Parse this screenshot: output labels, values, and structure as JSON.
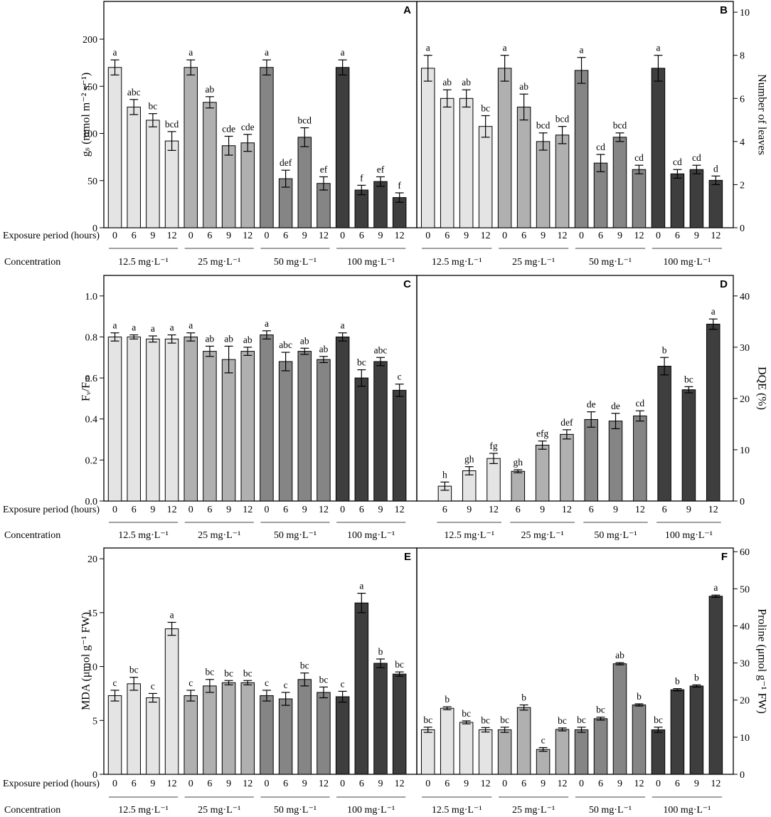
{
  "figure": {
    "row_labels": {
      "exposure": "Exposure period (hours)",
      "concentration": "Concentration"
    },
    "colors": [
      "#e4e4e4",
      "#b0b0b0",
      "#858585",
      "#3e3e3e"
    ]
  },
  "chart_data": [
    {
      "panel": "A",
      "type": "bar",
      "yaxis_side": "left",
      "ylabel": "gₛ (mmol m⁻² s⁻¹)",
      "ylim": [
        0,
        240
      ],
      "yticks": [
        0,
        50,
        100,
        150,
        200
      ],
      "groups": [
        {
          "label": "12.5 mg·L⁻¹",
          "x": [
            "0",
            "6",
            "9",
            "12"
          ],
          "values": [
            170,
            128,
            114,
            92
          ],
          "errors": [
            8,
            8,
            7,
            10
          ],
          "letters": [
            "a",
            "abc",
            "bc",
            "bcd"
          ]
        },
        {
          "label": "25 mg·L⁻¹",
          "x": [
            "0",
            "6",
            "9",
            "12"
          ],
          "values": [
            170,
            133,
            87,
            90
          ],
          "errors": [
            8,
            6,
            10,
            9
          ],
          "letters": [
            "a",
            "ab",
            "cde",
            "cde"
          ]
        },
        {
          "label": "50 mg·L⁻¹",
          "x": [
            "0",
            "6",
            "9",
            "12"
          ],
          "values": [
            170,
            52,
            96,
            47
          ],
          "errors": [
            8,
            9,
            10,
            7
          ],
          "letters": [
            "a",
            "def",
            "bcd",
            "ef"
          ]
        },
        {
          "label": "100 mg·L⁻¹",
          "x": [
            "0",
            "6",
            "9",
            "12"
          ],
          "values": [
            170,
            40,
            49,
            32
          ],
          "errors": [
            8,
            5,
            5,
            5
          ],
          "letters": [
            "a",
            "f",
            "ef",
            "f"
          ]
        }
      ]
    },
    {
      "panel": "B",
      "type": "bar",
      "yaxis_side": "right",
      "ylabel": "Number of leaves",
      "ylim": [
        0,
        10.5
      ],
      "yticks": [
        0,
        2,
        4,
        6,
        8,
        10
      ],
      "groups": [
        {
          "label": "12.5 mg·L⁻¹",
          "x": [
            "0",
            "6",
            "9",
            "12"
          ],
          "values": [
            7.4,
            6.0,
            6.0,
            4.7
          ],
          "errors": [
            0.6,
            0.4,
            0.4,
            0.5
          ],
          "letters": [
            "a",
            "ab",
            "ab",
            "bc"
          ]
        },
        {
          "label": "25 mg·L⁻¹",
          "x": [
            "0",
            "6",
            "9",
            "12"
          ],
          "values": [
            7.4,
            5.6,
            4.0,
            4.3
          ],
          "errors": [
            0.6,
            0.6,
            0.4,
            0.4
          ],
          "letters": [
            "a",
            "ab",
            "bcd",
            "bcd"
          ]
        },
        {
          "label": "50 mg·L⁻¹",
          "x": [
            "0",
            "6",
            "9",
            "12"
          ],
          "values": [
            7.3,
            3.0,
            4.2,
            2.7
          ],
          "errors": [
            0.6,
            0.4,
            0.2,
            0.2
          ],
          "letters": [
            "a",
            "cd",
            "bcd",
            "cd"
          ]
        },
        {
          "label": "100 mg·L⁻¹",
          "x": [
            "0",
            "6",
            "9",
            "12"
          ],
          "values": [
            7.4,
            2.5,
            2.7,
            2.2
          ],
          "errors": [
            0.6,
            0.2,
            0.2,
            0.2
          ],
          "letters": [
            "a",
            "cd",
            "cd",
            "d"
          ]
        }
      ]
    },
    {
      "panel": "C",
      "type": "bar",
      "yaxis_side": "left",
      "ylabel": "Fᵥ/Fₘ",
      "ylim": [
        0,
        1.1
      ],
      "yticks": [
        "0.0",
        "0.2",
        "0.4",
        "0.6",
        "0.8",
        "1.0"
      ],
      "groups": [
        {
          "label": "12.5 mg·L⁻¹",
          "x": [
            "0",
            "6",
            "9",
            "12"
          ],
          "values": [
            0.8,
            0.8,
            0.79,
            0.79
          ],
          "errors": [
            0.02,
            0.01,
            0.015,
            0.02
          ],
          "letters": [
            "a",
            "a",
            "a",
            "a"
          ]
        },
        {
          "label": "25 mg·L⁻¹",
          "x": [
            "0",
            "6",
            "9",
            "12"
          ],
          "values": [
            0.8,
            0.73,
            0.69,
            0.73
          ],
          "errors": [
            0.02,
            0.025,
            0.065,
            0.02
          ],
          "letters": [
            "a",
            "ab",
            "ab",
            "ab"
          ]
        },
        {
          "label": "50 mg·L⁻¹",
          "x": [
            "0",
            "6",
            "9",
            "12"
          ],
          "values": [
            0.81,
            0.68,
            0.73,
            0.69
          ],
          "errors": [
            0.02,
            0.045,
            0.015,
            0.015
          ],
          "letters": [
            "a",
            "abc",
            "ab",
            "ab"
          ]
        },
        {
          "label": "100 mg·L⁻¹",
          "x": [
            "0",
            "6",
            "9",
            "12"
          ],
          "values": [
            0.8,
            0.6,
            0.68,
            0.54
          ],
          "errors": [
            0.02,
            0.04,
            0.02,
            0.03
          ],
          "letters": [
            "a",
            "bc",
            "abc",
            "c"
          ]
        }
      ]
    },
    {
      "panel": "D",
      "type": "bar",
      "yaxis_side": "right",
      "ylabel": "DQE (%)",
      "ylim": [
        0,
        44
      ],
      "yticks": [
        0,
        10,
        20,
        30,
        40
      ],
      "groups": [
        {
          "label": "12.5 mg·L⁻¹",
          "x": [
            "6",
            "9",
            "12"
          ],
          "values": [
            2.9,
            5.9,
            8.3
          ],
          "errors": [
            0.8,
            0.8,
            1.0
          ],
          "letters": [
            "h",
            "gh",
            "fg"
          ]
        },
        {
          "label": "25 mg·L⁻¹",
          "x": [
            "6",
            "9",
            "12"
          ],
          "values": [
            5.8,
            10.9,
            13.0
          ],
          "errors": [
            0.3,
            0.8,
            0.9
          ],
          "letters": [
            "gh",
            "efg",
            "def"
          ]
        },
        {
          "label": "50 mg·L⁻¹",
          "x": [
            "6",
            "9",
            "12"
          ],
          "values": [
            15.9,
            15.6,
            16.6
          ],
          "errors": [
            1.5,
            1.5,
            1.0
          ],
          "letters": [
            "de",
            "de",
            "cd"
          ]
        },
        {
          "label": "100 mg·L⁻¹",
          "x": [
            "6",
            "9",
            "12"
          ],
          "values": [
            26.3,
            21.7,
            34.5
          ],
          "errors": [
            1.7,
            0.6,
            1.0
          ],
          "letters": [
            "b",
            "bc",
            "a"
          ]
        }
      ]
    },
    {
      "panel": "E",
      "type": "bar",
      "yaxis_side": "left",
      "ylabel": "MDA (μmol g⁻¹ FW)",
      "ylim": [
        0,
        21
      ],
      "yticks": [
        0,
        5,
        10,
        15,
        20
      ],
      "groups": [
        {
          "label": "12.5 mg·L⁻¹",
          "x": [
            "0",
            "6",
            "9",
            "12"
          ],
          "values": [
            7.3,
            8.4,
            7.1,
            13.5
          ],
          "errors": [
            0.5,
            0.6,
            0.4,
            0.6
          ],
          "letters": [
            "c",
            "bc",
            "c",
            "a"
          ]
        },
        {
          "label": "25 mg·L⁻¹",
          "x": [
            "0",
            "6",
            "9",
            "12"
          ],
          "values": [
            7.3,
            8.2,
            8.5,
            8.5
          ],
          "errors": [
            0.5,
            0.6,
            0.2,
            0.2
          ],
          "letters": [
            "c",
            "bc",
            "bc",
            "bc"
          ]
        },
        {
          "label": "50 mg·L⁻¹",
          "x": [
            "0",
            "6",
            "9",
            "12"
          ],
          "values": [
            7.3,
            7.0,
            8.8,
            7.6
          ],
          "errors": [
            0.5,
            0.6,
            0.6,
            0.5
          ],
          "letters": [
            "c",
            "c",
            "bc",
            "bc"
          ]
        },
        {
          "label": "100 mg·L⁻¹",
          "x": [
            "0",
            "6",
            "9",
            "12"
          ],
          "values": [
            7.2,
            15.9,
            10.3,
            9.3
          ],
          "errors": [
            0.5,
            0.9,
            0.4,
            0.2
          ],
          "letters": [
            "c",
            "a",
            "b",
            "bc"
          ]
        }
      ]
    },
    {
      "panel": "F",
      "type": "bar",
      "yaxis_side": "right",
      "ylabel": "Proline (μmol g⁻¹ FW)",
      "ylim": [
        0,
        61
      ],
      "yticks": [
        0,
        10,
        20,
        30,
        40,
        50,
        60
      ],
      "groups": [
        {
          "label": "12.5 mg·L⁻¹",
          "x": [
            "0",
            "6",
            "9",
            "12"
          ],
          "values": [
            12.0,
            17.8,
            14.0,
            12.0
          ],
          "errors": [
            0.7,
            0.4,
            0.4,
            0.6
          ],
          "letters": [
            "bc",
            "b",
            "bc",
            "bc"
          ]
        },
        {
          "label": "25 mg·L⁻¹",
          "x": [
            "0",
            "6",
            "9",
            "12"
          ],
          "values": [
            12.0,
            18.0,
            6.7,
            12.1
          ],
          "errors": [
            0.7,
            0.7,
            0.5,
            0.4
          ],
          "letters": [
            "bc",
            "b",
            "c",
            "bc"
          ]
        },
        {
          "label": "50 mg·L⁻¹",
          "x": [
            "0",
            "6",
            "9",
            "12"
          ],
          "values": [
            12.0,
            15.0,
            29.8,
            18.7
          ],
          "errors": [
            0.7,
            0.4,
            0.3,
            0.3
          ],
          "letters": [
            "bc",
            "bc",
            "ab",
            "b"
          ]
        },
        {
          "label": "100 mg·L⁻¹",
          "x": [
            "0",
            "6",
            "9",
            "12"
          ],
          "values": [
            12.0,
            22.8,
            23.8,
            48.0
          ],
          "errors": [
            0.7,
            0.3,
            0.3,
            0.3
          ],
          "letters": [
            "bc",
            "b",
            "b",
            "a"
          ]
        }
      ]
    }
  ]
}
